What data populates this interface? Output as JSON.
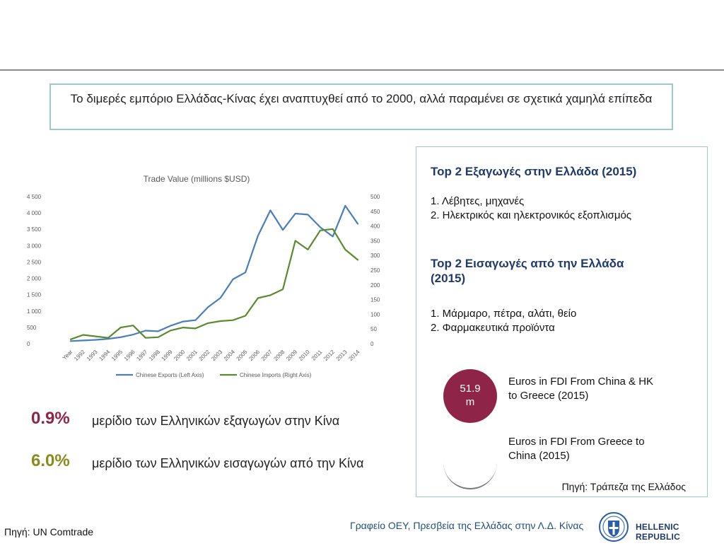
{
  "headline": "Το διμερές εμπόριο Ελλάδας-Κίνας έχει αναπτυχθεί από το 2000, αλλά παραμένει σε σχετικά χαμηλά επίπεδα",
  "colors": {
    "exports": "#4a7ebb",
    "imports": "#5a8a2e",
    "fdi_circle": "#8e2448",
    "border": "#9fc7cf",
    "title_blue": "#1f3a6b"
  },
  "chart_data": {
    "type": "line",
    "title": "Trade Value (millions  $USD)",
    "x": [
      "Year",
      "1992",
      "1993",
      "1994",
      "1995",
      "1996",
      "1997",
      "1998",
      "1999",
      "2000",
      "2001",
      "2002",
      "2003",
      "2004",
      "2005",
      "2006",
      "2007",
      "2008",
      "2009",
      "2010",
      "2011",
      "2012",
      "2013",
      "2014"
    ],
    "x_tick_labels": [
      "Year",
      "1992",
      "1993",
      "1994",
      "1995",
      "1996",
      "1997",
      "1998",
      "1999",
      "2000",
      "2001",
      "2002",
      "2003",
      "2004",
      "2005",
      "2006",
      "2007",
      "2008",
      "2009",
      "2010",
      "2011",
      "2012",
      "2013",
      "2014"
    ],
    "left_axis": {
      "ylim": [
        0,
        4500
      ],
      "ticks": [
        "0",
        "500",
        "1 000",
        "1 500",
        "2 000",
        "2 500",
        "3 000",
        "3 500",
        "4 000",
        "4 500"
      ]
    },
    "right_axis": {
      "ylim": [
        0,
        500
      ],
      "ticks": [
        "0",
        "50",
        "100",
        "150",
        "200",
        "250",
        "300",
        "350",
        "400",
        "450",
        "500"
      ]
    },
    "series": [
      {
        "name": "Chinese Exports (Left Axis)",
        "axis": "left",
        "values": [
          80,
          100,
          120,
          150,
          200,
          280,
          400,
          380,
          550,
          680,
          720,
          1120,
          1400,
          1970,
          2180,
          3300,
          4080,
          3480,
          3980,
          3950,
          3560,
          3280,
          4220,
          3670
        ]
      },
      {
        "name": "Chinese Imports (Right Axis)",
        "axis": "right",
        "values": [
          15,
          30,
          25,
          20,
          55,
          62,
          20,
          22,
          45,
          55,
          52,
          70,
          77,
          80,
          95,
          155,
          165,
          185,
          350,
          320,
          385,
          390,
          320,
          285
        ]
      }
    ],
    "legend": "bottom",
    "grid": false
  },
  "exports_panel": {
    "title": "Top 2 Εξαγωγές στην Ελλάδα (2015)",
    "items": [
      "1.  Λέβητες, μηχανές",
      "2.  Ηλεκτρικός και ηλεκτρονικός εξοπλισμός"
    ]
  },
  "imports_panel": {
    "title_line1": "Top 2 Εισαγωγές από την Ελλάδα",
    "title_line2": "(2015)",
    "items": [
      "1. Μάρμαρο, πέτρα, αλάτι, θείο",
      "2. Φαρμακευτικά προϊόντα"
    ]
  },
  "fdi": {
    "china_value_line1": "51.9",
    "china_value_line2": "m",
    "china_label_line1": "Euros in FDI From China & HK",
    "china_label_line2": "to Greece (2015)",
    "greece_label_line1": "Euros in FDI From Greece to",
    "greece_label_line2": "China (2015)"
  },
  "panel_source": "Πηγή: Τράπεζα της Ελλάδος",
  "shares": [
    {
      "value": "0.9%",
      "label": "μερίδιο των Ελληνικών εξαγωγών στην Κίνα",
      "color": "#8e2448"
    },
    {
      "value": "6.0%",
      "label": "μερίδιο των Ελληνικών εισαγωγών από την Κίνα",
      "color": "#8a8a1e"
    }
  ],
  "footer": {
    "source": "Πηγή: UN Comtrade",
    "office": "Γραφείο ΟΕΥ, Πρεσβεία της Ελλάδας στην Λ.Δ. Κίνας",
    "republic": "HELLENIC REPUBLIC"
  }
}
